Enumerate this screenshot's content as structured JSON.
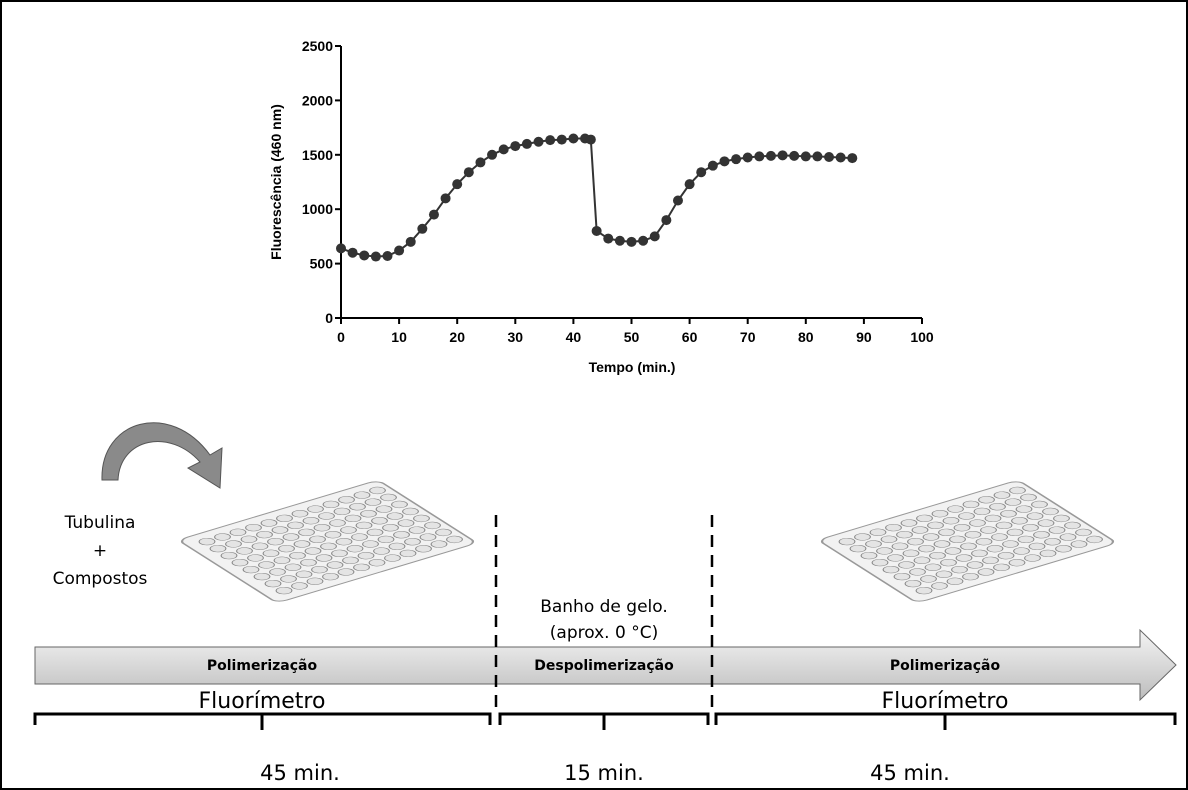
{
  "chart_data": {
    "type": "line",
    "x_label": "Tempo (min.)",
    "y_label": "Fluorescência (460 nm)",
    "xlim": [
      0,
      100
    ],
    "xticks": [
      0,
      10,
      20,
      30,
      40,
      50,
      60,
      70,
      80,
      90,
      100
    ],
    "ylim": [
      0,
      2500
    ],
    "yticks": [
      0,
      500,
      1000,
      1500,
      2000,
      2500
    ],
    "x": [
      0,
      2,
      4,
      6,
      8,
      10,
      12,
      14,
      16,
      18,
      20,
      22,
      24,
      26,
      28,
      30,
      32,
      34,
      36,
      38,
      40,
      42,
      43,
      44,
      46,
      48,
      50,
      52,
      54,
      56,
      58,
      60,
      62,
      64,
      66,
      68,
      70,
      72,
      74,
      76,
      78,
      80,
      82,
      84,
      86,
      88
    ],
    "series": [
      {
        "color": "#333333",
        "values": [
          640,
          600,
          575,
          565,
          570,
          620,
          700,
          820,
          950,
          1100,
          1230,
          1340,
          1430,
          1500,
          1550,
          1580,
          1600,
          1620,
          1635,
          1640,
          1650,
          1650,
          1640,
          800,
          730,
          710,
          700,
          710,
          750,
          900,
          1080,
          1230,
          1340,
          1400,
          1440,
          1460,
          1475,
          1485,
          1490,
          1495,
          1490,
          1485,
          1485,
          1480,
          1475,
          1470
        ]
      }
    ]
  },
  "diagram": {
    "input": [
      "Tubulina",
      "+",
      "Compostos"
    ],
    "ice_bath": [
      "Banho de gelo.",
      "(aprox. 0 °C)"
    ],
    "phases": [
      "Polimerização",
      "Despolimerização",
      "Polimerização"
    ],
    "instruments": [
      "Fluorímetro",
      "Fluorímetro"
    ],
    "durations": [
      "45 min.",
      "15 min.",
      "45 min."
    ]
  }
}
